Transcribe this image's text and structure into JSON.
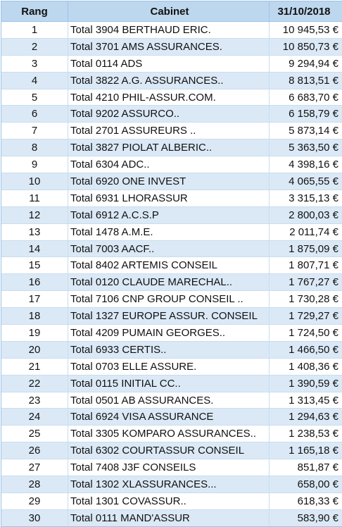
{
  "headers": {
    "rang": "Rang",
    "cabinet": "Cabinet",
    "date": "31/10/2018"
  },
  "rows": [
    {
      "rang": "1",
      "cabinet": "Total 3904 BERTHAUD ERIC.",
      "value": "10 945,53 €"
    },
    {
      "rang": "2",
      "cabinet": "Total 3701 AMS ASSURANCES.",
      "value": "10 850,73 €"
    },
    {
      "rang": "3",
      "cabinet": "Total 0114 ADS",
      "value": "9 294,94 €"
    },
    {
      "rang": "4",
      "cabinet": "Total 3822 A.G. ASSURANCES..",
      "value": "8 813,51 €"
    },
    {
      "rang": "5",
      "cabinet": "Total 4210 PHIL-ASSUR.COM.",
      "value": "6 683,70 €"
    },
    {
      "rang": "6",
      "cabinet": "Total 9202 ASSURCO..",
      "value": "6 158,79 €"
    },
    {
      "rang": "7",
      "cabinet": "Total 2701 ASSUREURS ..",
      "value": "5 873,14 €"
    },
    {
      "rang": "8",
      "cabinet": "Total 3827 PIOLAT ALBERIC..",
      "value": "5 363,50 €"
    },
    {
      "rang": "9",
      "cabinet": "Total 6304 ADC..",
      "value": "4 398,16 €"
    },
    {
      "rang": "10",
      "cabinet": "Total 6920 ONE INVEST",
      "value": "4 065,55 €"
    },
    {
      "rang": "11",
      "cabinet": "Total 6931 LHORASSUR",
      "value": "3 315,13 €"
    },
    {
      "rang": "12",
      "cabinet": "Total 6912 A.C.S.P",
      "value": "2 800,03 €"
    },
    {
      "rang": "13",
      "cabinet": "Total 1478 A.M.E.",
      "value": "2 011,74 €"
    },
    {
      "rang": "14",
      "cabinet": "Total 7003 AACF..",
      "value": "1 875,09 €"
    },
    {
      "rang": "15",
      "cabinet": "Total 8402 ARTEMIS CONSEIL",
      "value": "1 807,71 €"
    },
    {
      "rang": "16",
      "cabinet": "Total 0120 CLAUDE MARECHAL..",
      "value": "1 767,27 €"
    },
    {
      "rang": "17",
      "cabinet": "Total 7106 CNP GROUP CONSEIL ..",
      "value": "1 730,28 €"
    },
    {
      "rang": "18",
      "cabinet": "Total 1327 EUROPE ASSUR. CONSEIL",
      "value": "1 729,27 €"
    },
    {
      "rang": "19",
      "cabinet": "Total 4209 PUMAIN GEORGES..",
      "value": "1 724,50 €"
    },
    {
      "rang": "20",
      "cabinet": "Total 6933 CERTIS..",
      "value": "1 466,50 €"
    },
    {
      "rang": "21",
      "cabinet": "Total 0703 ELLE ASSURE.",
      "value": "1 408,36 €"
    },
    {
      "rang": "22",
      "cabinet": "Total 0115 INITIAL CC..",
      "value": "1 390,59 €"
    },
    {
      "rang": "23",
      "cabinet": "Total 0501 AB ASSURANCES.",
      "value": "1 313,45 €"
    },
    {
      "rang": "24",
      "cabinet": "Total 6924 VISA ASSURANCE",
      "value": "1 294,63 €"
    },
    {
      "rang": "25",
      "cabinet": "Total 3305 KOMPARO ASSURANCES..",
      "value": "1 238,53 €"
    },
    {
      "rang": "26",
      "cabinet": "Total 6302 COURTASSUR CONSEIL",
      "value": "1 165,18 €"
    },
    {
      "rang": "27",
      "cabinet": "Total 7408 J3F CONSEILS",
      "value": "851,87 €"
    },
    {
      "rang": "28",
      "cabinet": "Total 1302 XLASSURANCES...",
      "value": "658,00 €"
    },
    {
      "rang": "29",
      "cabinet": "Total 1301 COVASSUR..",
      "value": "618,33 €"
    },
    {
      "rang": "30",
      "cabinet": "Total 0111 MAND'ASSUR",
      "value": "583,90 €"
    }
  ]
}
